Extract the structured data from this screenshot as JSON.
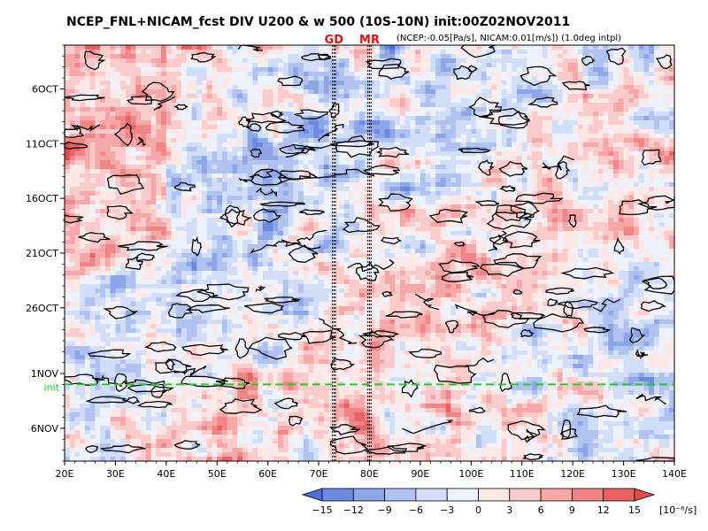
{
  "chart_data": {
    "type": "heatmap",
    "title": "NCEP_FNL+NICAM_fcst DIV U200 & w 500 (10S-10N) init:00Z02NOV2011",
    "subtitle": "(NCEP:-0.05[Pa/s], NICAM:0.01[m/s]) (1.0deg intpl)",
    "x_ticks": [
      "20E",
      "30E",
      "40E",
      "50E",
      "60E",
      "70E",
      "80E",
      "90E",
      "100E",
      "110E",
      "120E",
      "130E",
      "140E"
    ],
    "y_ticks": [
      "6OCT",
      "11OCT",
      "16OCT",
      "21OCT",
      "26OCT",
      "1NOV",
      "6NOV"
    ],
    "xlim": [
      20,
      140
    ],
    "ylim_dates": [
      "2011-10-02",
      "2011-11-09"
    ],
    "markers": [
      {
        "label": "GD",
        "lon": 73
      },
      {
        "label": "MR",
        "lon": 80
      }
    ],
    "init_label": "init",
    "init_date": "2011-11-02",
    "colorbar": {
      "levels": [
        -15,
        -12,
        -9,
        -6,
        -3,
        0,
        3,
        6,
        9,
        12,
        15
      ],
      "labels": [
        "-15",
        "-12",
        "-9",
        "-6",
        "-3",
        "0",
        "3",
        "6",
        "9",
        "12",
        "15"
      ],
      "units": "[10⁻⁶/s]",
      "colors": [
        "#4b6fd8",
        "#6c8ae0",
        "#8da6e8",
        "#b0c2f0",
        "#d2ddf7",
        "#eef2fc",
        "#fde8e8",
        "#fbcaca",
        "#f6a8a8",
        "#ef8585",
        "#e86363",
        "#e24b4b"
      ]
    }
  }
}
